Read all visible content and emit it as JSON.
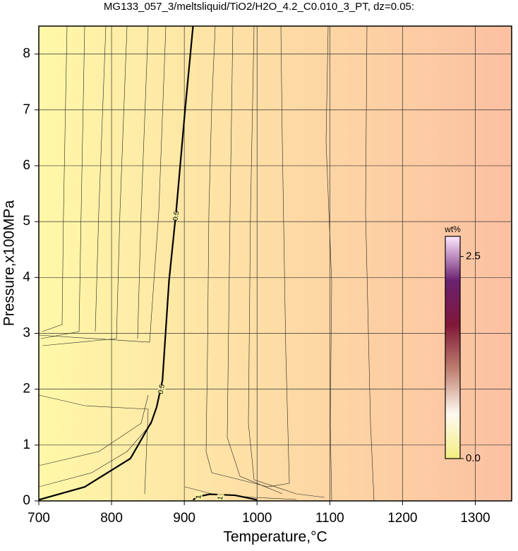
{
  "chart_data": {
    "type": "contour",
    "title": "MG133_057_3/meltsliquid/TiO2/H2O_4.2_C0.010_3_PT, dz=0.05:",
    "x_label": "Temperature,°C",
    "y_label": "Pressure,x100MPa",
    "xlim": [
      700,
      1350
    ],
    "ylim": [
      0,
      8.5
    ],
    "xticks": [
      700,
      800,
      900,
      1000,
      1100,
      1200,
      1300
    ],
    "yticks": [
      0,
      1,
      2,
      3,
      4,
      5,
      6,
      7,
      8
    ],
    "grid": true,
    "background_gradient": [
      "#fff8a8",
      "#fcc0a2"
    ],
    "contours": [
      {
        "level": 0.5,
        "color": "#000000",
        "x": [
          700,
          763,
          826,
          855,
          862,
          870,
          879,
          889,
          901,
          912
        ],
        "y": [
          0.02,
          0.25,
          0.76,
          1.42,
          1.68,
          2.16,
          3.94,
          5.21,
          6.99,
          8.5
        ]
      },
      {
        "level": 1,
        "color": "#000000",
        "x": [
          912,
          920,
          935,
          970,
          1000
        ],
        "y": [
          0.02,
          0.08,
          0.12,
          0.1,
          0.02
        ]
      }
    ],
    "colorbar": {
      "label": "wt%",
      "clim": [
        0,
        2.75
      ],
      "ticks": [
        {
          "value": 0,
          "label": "0.0"
        },
        {
          "value": 2.5,
          "label": "2.5"
        }
      ],
      "colormap": [
        "#f2ee80",
        "#fffaf0",
        "#c08070",
        "#801838",
        "#6a2070",
        "#ffe8ff"
      ]
    }
  }
}
